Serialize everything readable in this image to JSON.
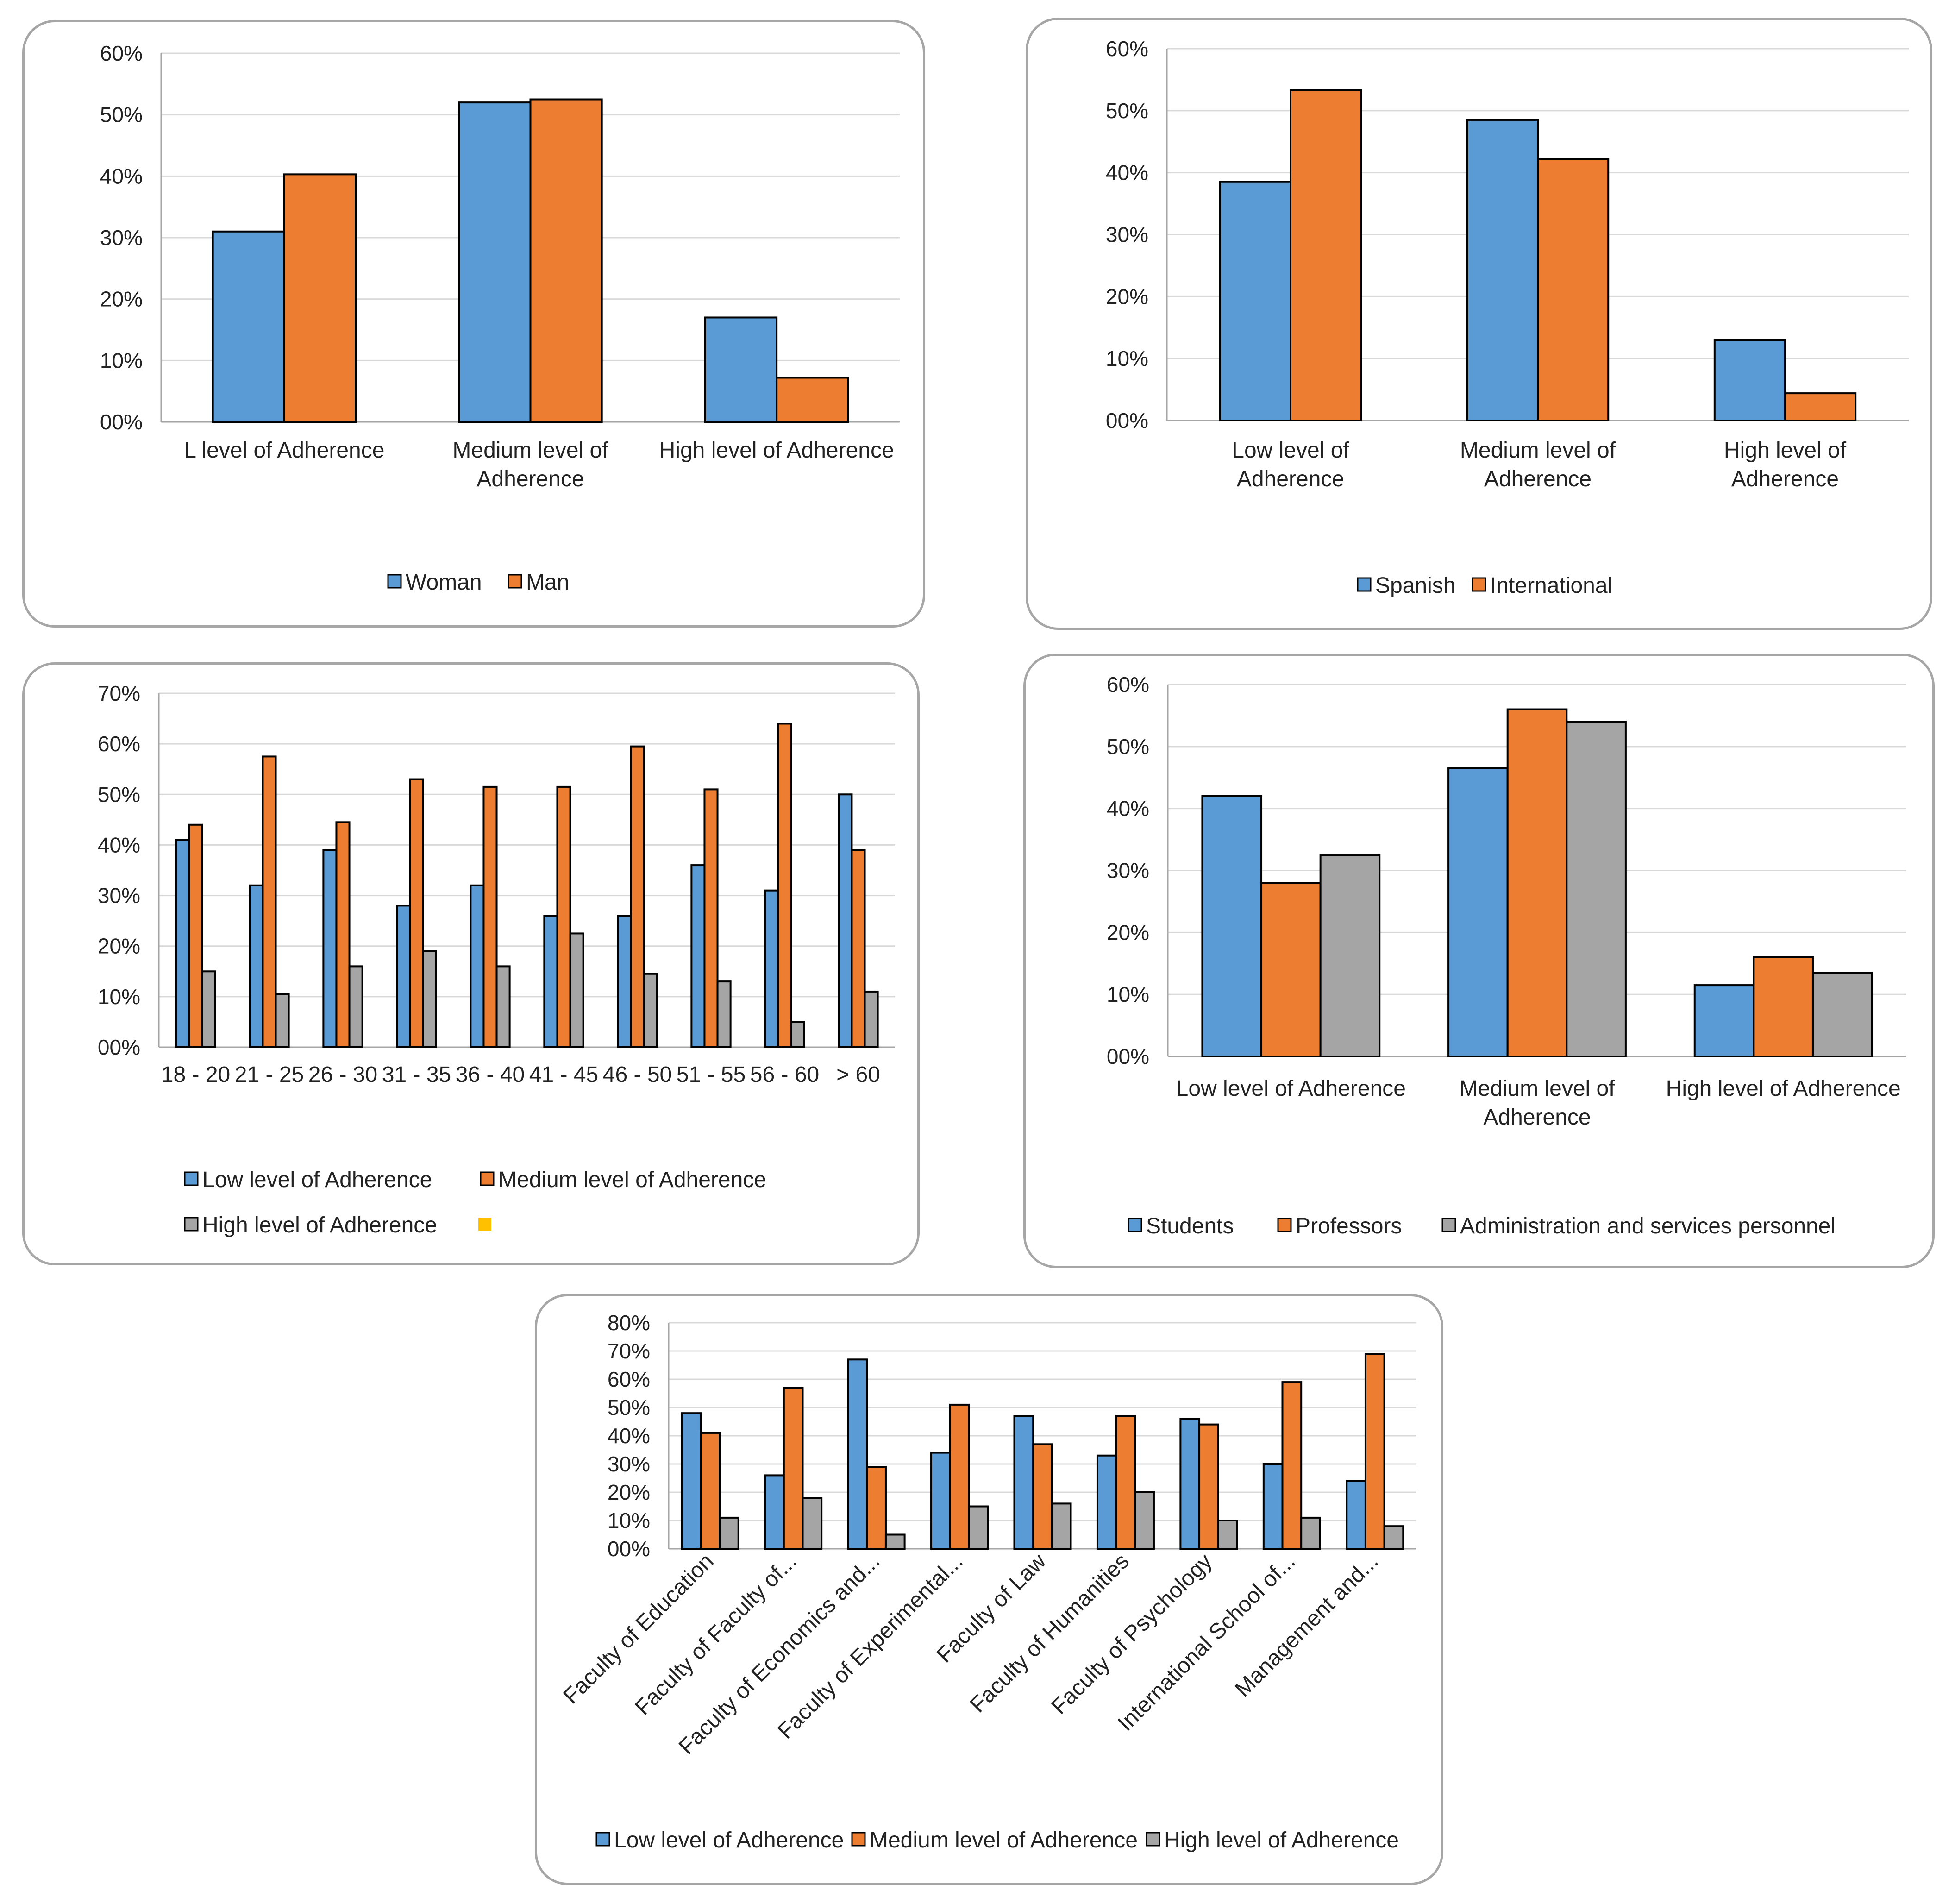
{
  "colors": {
    "blue": "#5b9bd5",
    "orange": "#ed7d31",
    "gray": "#a5a5a5",
    "yellow": "#ffc000"
  },
  "chart_data": [
    {
      "id": "gender",
      "type": "bar",
      "categories": [
        [
          "L level of Adherence"
        ],
        [
          "Medium level of",
          "Adherence"
        ],
        [
          "High level of Adherence"
        ]
      ],
      "series": [
        {
          "name": "Woman",
          "color": "#5b9bd5",
          "values": [
            31,
            52,
            17
          ]
        },
        {
          "name": "Man",
          "color": "#ed7d31",
          "values": [
            40.3,
            52.5,
            7.2
          ]
        }
      ],
      "yticks": [
        "00%",
        "10%",
        "20%",
        "30%",
        "40%",
        "50%",
        "60%"
      ],
      "ylim": [
        0,
        60
      ],
      "legend": "bottom"
    },
    {
      "id": "nationality",
      "type": "bar",
      "categories": [
        [
          "Low level of",
          "Adherence"
        ],
        [
          "Medium level of",
          "Adherence"
        ],
        [
          "High level of",
          "Adherence"
        ]
      ],
      "series": [
        {
          "name": "Spanish",
          "color": "#5b9bd5",
          "values": [
            38.5,
            48.5,
            13
          ]
        },
        {
          "name": "International",
          "color": "#ed7d31",
          "values": [
            53.3,
            42.2,
            4.4
          ]
        }
      ],
      "yticks": [
        "00%",
        "10%",
        "20%",
        "30%",
        "40%",
        "50%",
        "60%"
      ],
      "ylim": [
        0,
        60
      ],
      "legend": "bottom"
    },
    {
      "id": "age",
      "type": "bar",
      "categories": [
        [
          "18 - 20"
        ],
        [
          "21 - 25"
        ],
        [
          "26 - 30"
        ],
        [
          "31 - 35"
        ],
        [
          "36 - 40"
        ],
        [
          "41 - 45"
        ],
        [
          "46 - 50"
        ],
        [
          "51 - 55"
        ],
        [
          "56 - 60"
        ],
        [
          "> 60"
        ]
      ],
      "series": [
        {
          "name": "Low level of Adherence",
          "color": "#5b9bd5",
          "values": [
            41,
            32,
            39,
            28,
            32,
            26,
            26,
            36,
            31,
            50
          ]
        },
        {
          "name": "Medium level of Adherence",
          "color": "#ed7d31",
          "values": [
            44,
            57.5,
            44.5,
            53,
            51.5,
            51.5,
            59.5,
            51,
            64,
            39
          ]
        },
        {
          "name": "High level of Adherence",
          "color": "#a5a5a5",
          "values": [
            15,
            10.5,
            16,
            19,
            16,
            22.5,
            14.5,
            13,
            5,
            11
          ]
        }
      ],
      "extra_legend_color": "#ffc000",
      "yticks": [
        "00%",
        "10%",
        "20%",
        "30%",
        "40%",
        "50%",
        "60%",
        "70%"
      ],
      "ylim": [
        0,
        70
      ],
      "legend": "bottom"
    },
    {
      "id": "group",
      "type": "bar",
      "categories": [
        [
          "Low level of Adherence"
        ],
        [
          "Medium level of",
          "Adherence"
        ],
        [
          "High level of Adherence"
        ]
      ],
      "series": [
        {
          "name": "Students",
          "color": "#5b9bd5",
          "values": [
            42,
            46.5,
            11.5
          ]
        },
        {
          "name": "Professors",
          "color": "#ed7d31",
          "values": [
            28,
            56,
            16
          ]
        },
        {
          "name": "Administration and services personnel",
          "color": "#a5a5a5",
          "values": [
            32.5,
            54,
            13.5
          ]
        }
      ],
      "yticks": [
        "00%",
        "10%",
        "20%",
        "30%",
        "40%",
        "50%",
        "60%"
      ],
      "ylim": [
        0,
        60
      ],
      "legend": "bottom"
    },
    {
      "id": "faculty",
      "type": "bar",
      "categories": [
        [
          "Faculty of Education"
        ],
        [
          "Faculty of  Faculty of..."
        ],
        [
          "Faculty of Economics and..."
        ],
        [
          "Faculty of Experimental..."
        ],
        [
          "Faculty of Law"
        ],
        [
          "Faculty of Humanities"
        ],
        [
          "Faculty of Psychology"
        ],
        [
          "International School of..."
        ],
        [
          "Management and..."
        ]
      ],
      "series": [
        {
          "name": "Low level of Adherence",
          "color": "#5b9bd5",
          "values": [
            48,
            26,
            67,
            34,
            47,
            33,
            46,
            30,
            24
          ]
        },
        {
          "name": "Medium level of Adherence",
          "color": "#ed7d31",
          "values": [
            41,
            57,
            29,
            51,
            37,
            47,
            44,
            59,
            69
          ]
        },
        {
          "name": "High level of Adherence",
          "color": "#a5a5a5",
          "values": [
            11,
            18,
            5,
            15,
            16,
            20,
            10,
            11,
            8
          ]
        }
      ],
      "yticks": [
        "00%",
        "10%",
        "20%",
        "30%",
        "40%",
        "50%",
        "60%",
        "70%",
        "80%"
      ],
      "ylim": [
        0,
        80
      ],
      "legend": "bottom"
    }
  ]
}
